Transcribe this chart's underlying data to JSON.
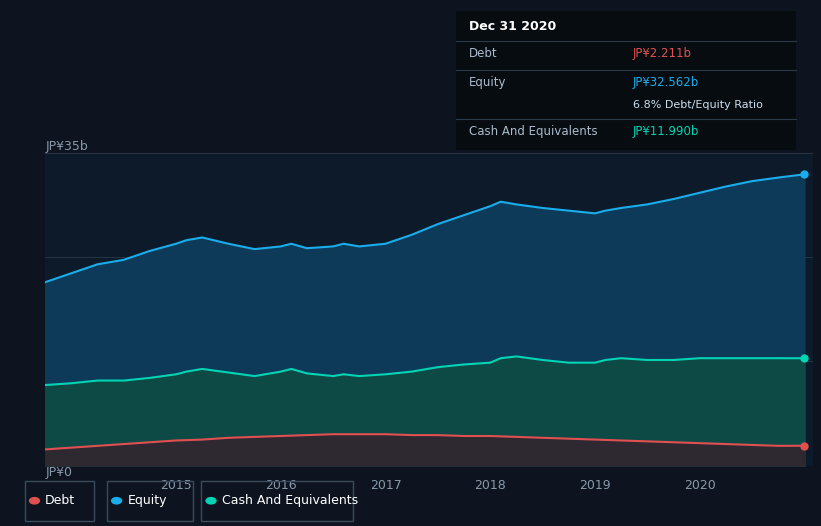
{
  "background_color": "#0d1420",
  "plot_bg_color": "#0d1a2a",
  "title_box": {
    "date": "Dec 31 2020",
    "debt_label": "Debt",
    "debt_value": "JP¥2.211b",
    "equity_label": "Equity",
    "equity_value": "JP¥32.562b",
    "ratio_text": "6.8% Debt/Equity Ratio",
    "cash_label": "Cash And Equivalents",
    "cash_value": "JP¥11.990b"
  },
  "ylabel_top": "JP¥35b",
  "ylabel_bottom": "JP¥0",
  "colors": {
    "debt": "#e05050",
    "equity": "#1aadec",
    "cash": "#00d4b4",
    "equity_fill": "#0e3a5a",
    "cash_fill": "#0d4a45",
    "debt_fill": "#2e2830"
  },
  "ylim": [
    0,
    35
  ],
  "legend": [
    {
      "label": "Debt",
      "color": "#e05050"
    },
    {
      "label": "Equity",
      "color": "#1aadec"
    },
    {
      "label": "Cash And Equivalents",
      "color": "#00d4b4"
    }
  ],
  "equity_data": {
    "x": [
      2013.75,
      2014.0,
      2014.25,
      2014.5,
      2014.75,
      2015.0,
      2015.1,
      2015.25,
      2015.5,
      2015.75,
      2016.0,
      2016.1,
      2016.25,
      2016.5,
      2016.6,
      2016.75,
      2017.0,
      2017.25,
      2017.5,
      2017.75,
      2018.0,
      2018.1,
      2018.25,
      2018.5,
      2018.75,
      2019.0,
      2019.1,
      2019.25,
      2019.5,
      2019.75,
      2020.0,
      2020.25,
      2020.5,
      2020.75,
      2021.0
    ],
    "y": [
      20.5,
      21.5,
      22.5,
      23.0,
      24.0,
      24.8,
      25.2,
      25.5,
      24.8,
      24.2,
      24.5,
      24.8,
      24.3,
      24.5,
      24.8,
      24.5,
      24.8,
      25.8,
      27.0,
      28.0,
      29.0,
      29.5,
      29.2,
      28.8,
      28.5,
      28.2,
      28.5,
      28.8,
      29.2,
      29.8,
      30.5,
      31.2,
      31.8,
      32.2,
      32.562
    ]
  },
  "cash_data": {
    "x": [
      2013.75,
      2014.0,
      2014.25,
      2014.5,
      2014.75,
      2015.0,
      2015.1,
      2015.25,
      2015.5,
      2015.75,
      2016.0,
      2016.1,
      2016.25,
      2016.5,
      2016.6,
      2016.75,
      2017.0,
      2017.25,
      2017.5,
      2017.75,
      2018.0,
      2018.1,
      2018.25,
      2018.5,
      2018.75,
      2019.0,
      2019.1,
      2019.25,
      2019.5,
      2019.75,
      2020.0,
      2020.25,
      2020.5,
      2020.75,
      2021.0
    ],
    "y": [
      9.0,
      9.2,
      9.5,
      9.5,
      9.8,
      10.2,
      10.5,
      10.8,
      10.4,
      10.0,
      10.5,
      10.8,
      10.3,
      10.0,
      10.2,
      10.0,
      10.2,
      10.5,
      11.0,
      11.3,
      11.5,
      12.0,
      12.2,
      11.8,
      11.5,
      11.5,
      11.8,
      12.0,
      11.8,
      11.8,
      12.0,
      12.0,
      12.0,
      12.0,
      11.99
    ]
  },
  "debt_data": {
    "x": [
      2013.75,
      2014.0,
      2014.25,
      2014.5,
      2014.75,
      2015.0,
      2015.25,
      2015.5,
      2015.75,
      2016.0,
      2016.25,
      2016.5,
      2016.75,
      2017.0,
      2017.25,
      2017.5,
      2017.75,
      2018.0,
      2018.25,
      2018.5,
      2018.75,
      2019.0,
      2019.25,
      2019.5,
      2019.75,
      2020.0,
      2020.25,
      2020.5,
      2020.75,
      2021.0
    ],
    "y": [
      1.8,
      2.0,
      2.2,
      2.4,
      2.6,
      2.8,
      2.9,
      3.1,
      3.2,
      3.3,
      3.4,
      3.5,
      3.5,
      3.5,
      3.4,
      3.4,
      3.3,
      3.3,
      3.2,
      3.1,
      3.0,
      2.9,
      2.8,
      2.7,
      2.6,
      2.5,
      2.4,
      2.3,
      2.2,
      2.211
    ]
  }
}
